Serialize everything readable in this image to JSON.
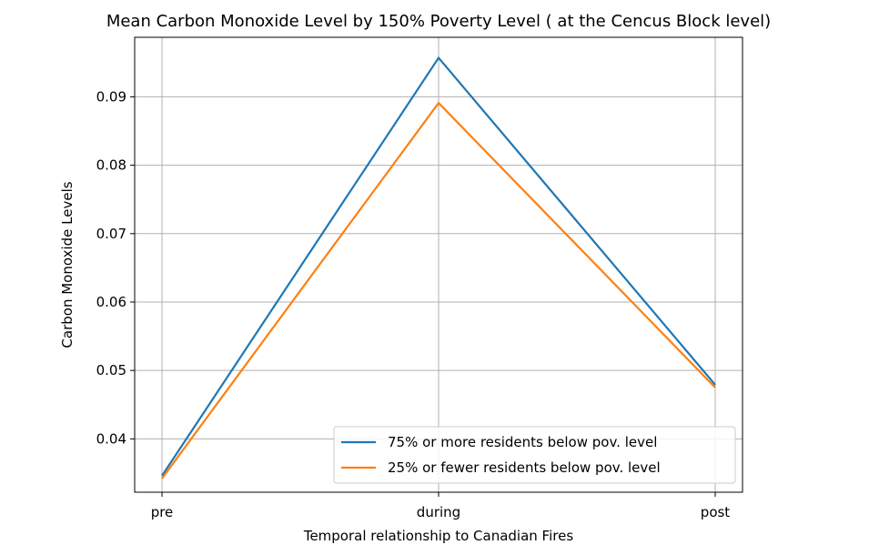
{
  "chart_data": {
    "type": "line",
    "title": "Mean Carbon Monoxide Level by 150% Poverty Level ( at the Cencus Block level)",
    "xlabel": "Temporal relationship to Canadian Fires",
    "ylabel": "Carbon Monoxide Levels",
    "categories": [
      "pre",
      "during",
      "post"
    ],
    "ylim": [
      0.0322,
      0.0987
    ],
    "yticks": [
      0.04,
      0.05,
      0.06,
      0.07,
      0.08,
      0.09
    ],
    "ytick_labels": [
      "0.04",
      "0.05",
      "0.06",
      "0.07",
      "0.08",
      "0.09"
    ],
    "grid": true,
    "legend_position": "lower-right",
    "series": [
      {
        "name": "75% or more residents below pov. level",
        "values": [
          0.0346,
          0.0957,
          0.0479
        ],
        "color": "#1f77b4"
      },
      {
        "name": "25% or fewer residents below pov. level",
        "values": [
          0.0342,
          0.0891,
          0.0475
        ],
        "color": "#ff7f0e"
      }
    ]
  }
}
